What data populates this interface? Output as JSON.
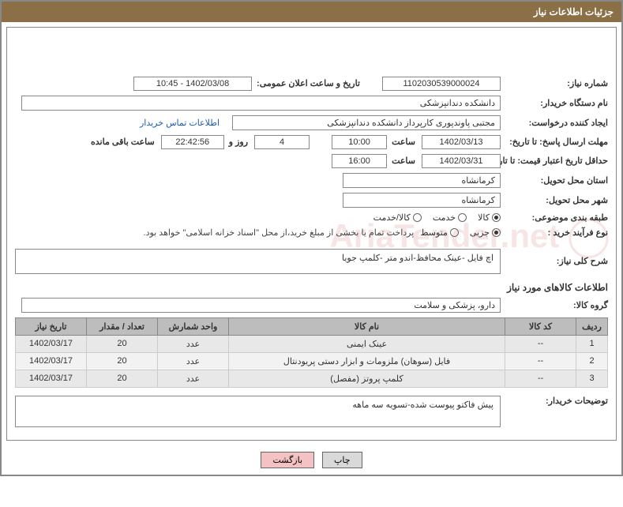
{
  "header": {
    "title": "جزئیات اطلاعات نیاز"
  },
  "fields": {
    "need_number_label": "شماره نیاز:",
    "need_number": "1102030539000024",
    "announce_label": "تاریخ و ساعت اعلان عمومی:",
    "announce_value": "1402/03/08 - 10:45",
    "buyer_label": "نام دستگاه خریدار:",
    "buyer_value": "دانشکده دندانپزشکی",
    "requester_label": "ایجاد کننده درخواست:",
    "requester_value": "مجتبی  پاوندپوری کارپرداز دانشکده دندانپزشکی",
    "buyer_contact_link": "اطلاعات تماس خریدار",
    "reply_deadline_label": "مهلت ارسال پاسخ: تا تاریخ:",
    "reply_date": "1402/03/13",
    "time_label": "ساعت",
    "reply_time": "10:00",
    "days_count": "4",
    "days_and": "روز و",
    "countdown": "22:42:56",
    "remaining_label": "ساعت باقی مانده",
    "validity_label": "حداقل تاریخ اعتبار قیمت: تا تاریخ:",
    "validity_date": "1402/03/31",
    "validity_time": "16:00",
    "province_label": "استان محل تحویل:",
    "province_value": "کرمانشاه",
    "city_label": "شهر محل تحویل:",
    "city_value": "کرمانشاه",
    "category_label": "طبقه بندی موضوعی:",
    "process_label": "نوع فرآیند خرید :",
    "payment_note": "پرداخت تمام یا بخشی از مبلغ خرید،از محل \"اسناد خزانه اسلامی\" خواهد بود.",
    "desc_label": "شرح کلی نیاز:",
    "desc_value": "اچ فایل -عینک محافظ-اندو متر -کلمپ جویا",
    "goods_info_title": "اطلاعات کالاهای مورد نیاز",
    "goods_group_label": "گروه کالا:",
    "goods_group_value": "دارو، پزشکی و سلامت",
    "buyer_notes_label": "توضیحات خریدار:",
    "buyer_notes_value": "پیش فاکتو پیوست شده-تسویه سه ماهه"
  },
  "radios": {
    "category": [
      {
        "label": "کالا",
        "selected": true
      },
      {
        "label": "خدمت",
        "selected": false
      },
      {
        "label": "کالا/خدمت",
        "selected": false
      }
    ],
    "process": [
      {
        "label": "جزیی",
        "selected": true
      },
      {
        "label": "متوسط",
        "selected": false
      }
    ]
  },
  "table": {
    "headers": {
      "row": "ردیف",
      "code": "کد کالا",
      "name": "نام کالا",
      "unit": "واحد شمارش",
      "qty": "تعداد / مقدار",
      "date": "تاریخ نیاز"
    },
    "rows": [
      {
        "n": "1",
        "code": "--",
        "name": "عینک ایمنی",
        "unit": "عدد",
        "qty": "20",
        "date": "1402/03/17"
      },
      {
        "n": "2",
        "code": "--",
        "name": "فایل (سوهان) ملزومات و ابزار دستی پریودنتال",
        "unit": "عدد",
        "qty": "20",
        "date": "1402/03/17"
      },
      {
        "n": "3",
        "code": "--",
        "name": "کلمپ پروتز (مفصل)",
        "unit": "عدد",
        "qty": "20",
        "date": "1402/03/17"
      }
    ]
  },
  "buttons": {
    "print": "چاپ",
    "back": "بازگشت"
  },
  "watermark": "AriaTender.net",
  "colors": {
    "header_bg": "#8b6f47",
    "border": "#888888",
    "th_bg": "#bdbdbd",
    "btn_back_bg": "#f4c2c2",
    "link": "#1a5bb8"
  }
}
